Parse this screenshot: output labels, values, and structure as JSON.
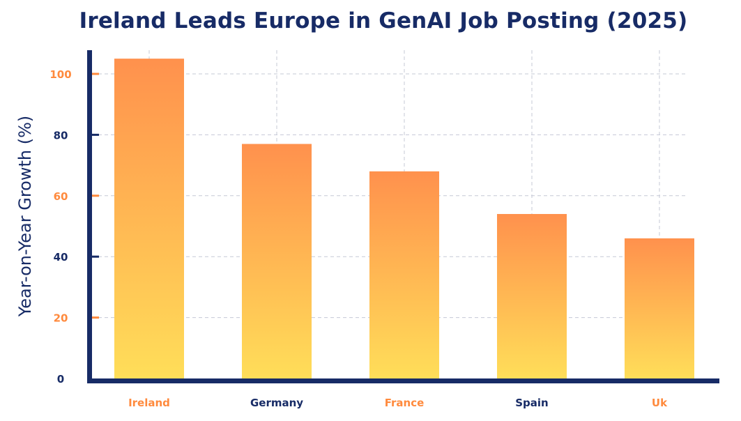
{
  "chart_data": {
    "type": "bar",
    "title": "Ireland Leads Europe in GenAI Job Posting (2025)",
    "xlabel": "",
    "ylabel": "Year-on-Year Growth (%)",
    "categories": [
      "Ireland",
      "Germany",
      "France",
      "Spain",
      "Uk"
    ],
    "values": [
      105,
      77,
      68,
      54,
      46
    ],
    "ylim": [
      0,
      105
    ],
    "yticks": [
      0,
      20,
      40,
      60,
      80,
      100
    ],
    "grid": true,
    "colors": {
      "bar_top": "#ff914d",
      "bar_bottom": "#ffde59",
      "navy": "#172b66",
      "orange": "#ff8a3d",
      "grid": "#c5c8d6"
    }
  }
}
